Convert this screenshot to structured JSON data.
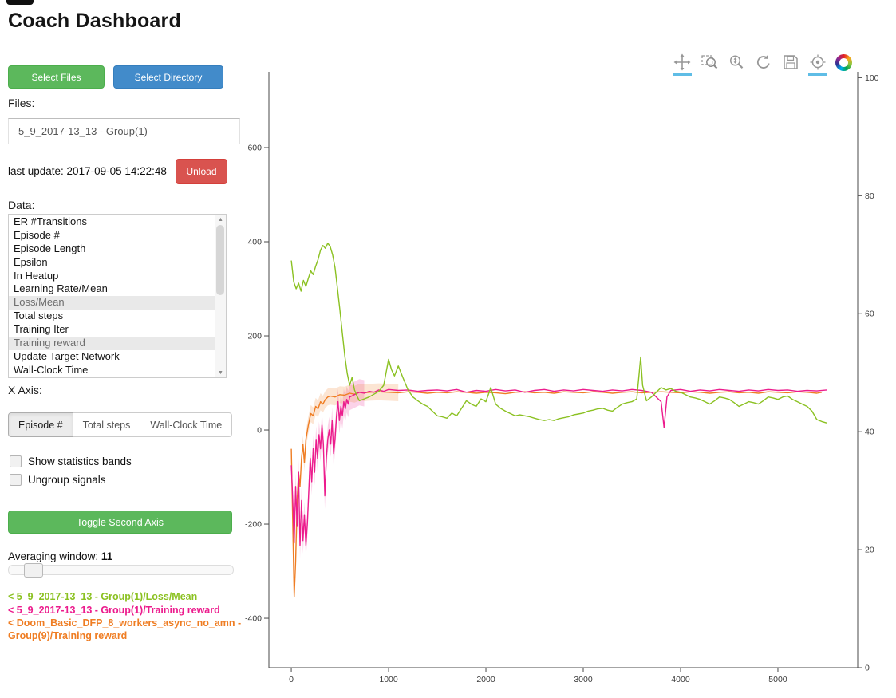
{
  "header": {
    "title": "Coach Dashboard"
  },
  "sidebar": {
    "buttons": {
      "select_files": "Select Files",
      "select_directory": "Select Directory",
      "unload": "Unload",
      "toggle_second_axis": "Toggle Second Axis"
    },
    "files_label": "Files:",
    "file_selected": "5_9_2017-13_13 - Group(1)",
    "last_update": "last update: 2017-09-05 14:22:48",
    "data_label": "Data:",
    "data_items": [
      {
        "label": "ER #Transitions",
        "selected": false
      },
      {
        "label": "Episode #",
        "selected": false
      },
      {
        "label": "Episode Length",
        "selected": false
      },
      {
        "label": "Epsilon",
        "selected": false
      },
      {
        "label": "In Heatup",
        "selected": false
      },
      {
        "label": "Learning Rate/Mean",
        "selected": false
      },
      {
        "label": "Loss/Mean",
        "selected": true
      },
      {
        "label": "Total steps",
        "selected": false
      },
      {
        "label": "Training Iter",
        "selected": false
      },
      {
        "label": "Training reward",
        "selected": true
      },
      {
        "label": "Update Target Network",
        "selected": false
      },
      {
        "label": "Wall-Clock Time",
        "selected": false
      }
    ],
    "x_axis_label": "X Axis:",
    "x_axis_options": [
      {
        "label": "Episode #",
        "active": true
      },
      {
        "label": "Total steps",
        "active": false
      },
      {
        "label": "Wall-Clock Time",
        "active": false
      }
    ],
    "checkboxes": [
      {
        "label": "Show statistics bands",
        "checked": false
      },
      {
        "label": "Ungroup signals",
        "checked": false
      }
    ],
    "averaging": {
      "label": "Averaging window:",
      "value": "11"
    },
    "legend": [
      {
        "text": "< 5_9_2017-13_13 - Group(1)/Loss/Mean",
        "color": "#8bc122"
      },
      {
        "text": "< 5_9_2017-13_13 - Group(1)/Training reward",
        "color": "#ec1c8d"
      },
      {
        "text": "< Doom_Basic_DFP_8_workers_async_no_amn - Group(9)/Training reward",
        "color": "#ef7d23"
      }
    ]
  },
  "toolbar": {
    "tools": [
      {
        "name": "pan",
        "active": true
      },
      {
        "name": "box-zoom",
        "active": false
      },
      {
        "name": "wheel-zoom",
        "active": false
      },
      {
        "name": "reset",
        "active": false
      },
      {
        "name": "save",
        "active": false
      },
      {
        "name": "hover",
        "active": true
      }
    ],
    "logo": "bokeh-logo"
  },
  "chart_data": {
    "type": "line",
    "title": "",
    "xlabel": "",
    "ylabel": "",
    "axes": {
      "xlim": [
        -230,
        5820
      ],
      "ylim_left": [
        -505,
        761
      ],
      "ylim_right": [
        0,
        101
      ],
      "x_ticks": [
        0,
        1000,
        2000,
        3000,
        4000,
        5000
      ],
      "y_left_ticks": [
        -400,
        -200,
        0,
        200,
        400,
        600
      ],
      "y_right_ticks": [
        0,
        20,
        40,
        60,
        80,
        100
      ],
      "grid": false,
      "legend_position": "external-left-sidebar"
    },
    "series": [
      {
        "name": "5_9_2017-13_13 - Group(1)/Loss/Mean",
        "color": "#8bc122",
        "axis": "left",
        "x": [
          0,
          25,
          50,
          75,
          100,
          125,
          150,
          175,
          200,
          225,
          250,
          275,
          300,
          325,
          350,
          375,
          400,
          425,
          450,
          475,
          500,
          525,
          550,
          575,
          600,
          625,
          650,
          675,
          700,
          750,
          800,
          850,
          900,
          950,
          1000,
          1030,
          1060,
          1100,
          1150,
          1200,
          1250,
          1300,
          1350,
          1400,
          1450,
          1500,
          1550,
          1600,
          1650,
          1700,
          1750,
          1800,
          1850,
          1900,
          1950,
          2000,
          2050,
          2100,
          2150,
          2200,
          2250,
          2300,
          2350,
          2400,
          2450,
          2500,
          2550,
          2600,
          2650,
          2700,
          2750,
          2800,
          2850,
          2900,
          2950,
          3000,
          3050,
          3100,
          3150,
          3200,
          3250,
          3300,
          3350,
          3400,
          3450,
          3500,
          3550,
          3590,
          3610,
          3650,
          3700,
          3750,
          3800,
          3850,
          3900,
          3950,
          4000,
          4050,
          4100,
          4150,
          4200,
          4250,
          4300,
          4350,
          4400,
          4450,
          4500,
          4550,
          4600,
          4650,
          4700,
          4750,
          4800,
          4850,
          4900,
          4950,
          5000,
          5050,
          5100,
          5150,
          5200,
          5250,
          5300,
          5350,
          5400,
          5450,
          5500
        ],
        "y": [
          360,
          315,
          300,
          312,
          295,
          318,
          305,
          322,
          338,
          330,
          348,
          362,
          382,
          392,
          386,
          397,
          390,
          372,
          345,
          300,
          255,
          205,
          158,
          120,
          95,
          112,
          85,
          72,
          62,
          66,
          70,
          76,
          82,
          95,
          150,
          128,
          115,
          136,
          110,
          85,
          70,
          62,
          55,
          50,
          40,
          30,
          28,
          25,
          36,
          30,
          46,
          62,
          55,
          50,
          66,
          60,
          90,
          55,
          46,
          40,
          35,
          30,
          32,
          30,
          28,
          25,
          22,
          20,
          22,
          20,
          24,
          26,
          28,
          32,
          34,
          36,
          40,
          42,
          45,
          46,
          42,
          40,
          48,
          55,
          58,
          60,
          66,
          155,
          95,
          62,
          70,
          80,
          90,
          85,
          88,
          82,
          80,
          75,
          70,
          68,
          65,
          60,
          55,
          62,
          70,
          68,
          65,
          58,
          50,
          55,
          60,
          58,
          55,
          62,
          70,
          68,
          65,
          70,
          72,
          65,
          60,
          55,
          50,
          40,
          22,
          18,
          15
        ]
      },
      {
        "name": "5_9_2017-13_13 - Group(1)/Training reward",
        "color": "#ec1c8d",
        "axis": "left",
        "band": {
          "start": 15,
          "end": 750,
          "halfwidth": 28
        },
        "x": [
          0,
          15,
          30,
          45,
          60,
          75,
          90,
          105,
          120,
          135,
          150,
          165,
          180,
          195,
          210,
          225,
          240,
          255,
          270,
          285,
          300,
          315,
          330,
          345,
          360,
          375,
          390,
          405,
          420,
          435,
          450,
          465,
          480,
          495,
          510,
          525,
          540,
          555,
          570,
          585,
          600,
          650,
          700,
          750,
          800,
          850,
          900,
          950,
          1000,
          1100,
          1200,
          1300,
          1400,
          1500,
          1600,
          1700,
          1800,
          1900,
          2000,
          2100,
          2200,
          2300,
          2400,
          2500,
          2600,
          2700,
          2800,
          2900,
          3000,
          3100,
          3200,
          3300,
          3400,
          3500,
          3600,
          3700,
          3800,
          3830,
          3860,
          3900,
          4000,
          4100,
          4200,
          4300,
          4400,
          4500,
          4600,
          4700,
          4800,
          4900,
          5000,
          5100,
          5200,
          5300,
          5400,
          5500
        ],
        "y": [
          -75,
          -150,
          -240,
          -120,
          -205,
          -90,
          -245,
          -150,
          -235,
          -180,
          -245,
          -200,
          -130,
          -60,
          -110,
          -40,
          -90,
          -20,
          -60,
          -10,
          -40,
          10,
          -30,
          -140,
          -60,
          -20,
          0,
          -30,
          20,
          -50,
          -20,
          30,
          60,
          20,
          50,
          30,
          60,
          45,
          65,
          55,
          70,
          75,
          80,
          78,
          82,
          80,
          85,
          82,
          86,
          84,
          85,
          82,
          84,
          85,
          83,
          86,
          80,
          84,
          82,
          86,
          83,
          85,
          80,
          84,
          86,
          82,
          85,
          83,
          86,
          84,
          82,
          85,
          83,
          86,
          84,
          80,
          60,
          5,
          70,
          84,
          86,
          82,
          85,
          83,
          86,
          84,
          82,
          85,
          83,
          86,
          84,
          85,
          82,
          84,
          83,
          85
        ]
      },
      {
        "name": "Doom_Basic_DFP_8_workers_async_no_amn - Group(9)/Training reward",
        "color": "#ef7d23",
        "axis": "left",
        "band": {
          "start": 100,
          "end": 1150,
          "halfwidth": 18
        },
        "x": [
          0,
          15,
          30,
          45,
          60,
          75,
          90,
          105,
          120,
          135,
          150,
          175,
          200,
          225,
          250,
          275,
          300,
          325,
          350,
          375,
          400,
          450,
          500,
          550,
          600,
          650,
          700,
          750,
          800,
          900,
          1000,
          1100,
          1200,
          1300,
          1400,
          1500,
          1600,
          1700,
          1800,
          1900,
          2000,
          2100,
          2200,
          2300,
          2400,
          2500,
          2600,
          2700,
          2800,
          2900,
          3000,
          3100,
          3200,
          3300,
          3400,
          3500,
          3600,
          3700,
          3800,
          3900,
          4000,
          4100,
          4200,
          4300,
          4400,
          4500,
          4600,
          4700,
          4800,
          4900,
          5000,
          5100,
          5200,
          5300,
          5400,
          5450
        ],
        "y": [
          -40,
          -200,
          -355,
          -280,
          -150,
          -90,
          -120,
          -60,
          -30,
          -70,
          -20,
          10,
          35,
          30,
          50,
          45,
          60,
          55,
          65,
          70,
          72,
          70,
          75,
          74,
          78,
          76,
          80,
          79,
          80,
          81,
          80,
          79,
          81,
          80,
          78,
          80,
          79,
          81,
          80,
          78,
          80,
          79,
          77,
          80,
          81,
          79,
          80,
          78,
          81,
          80,
          79,
          81,
          80,
          78,
          80,
          81,
          79,
          80,
          81,
          80,
          79,
          81,
          80,
          78,
          80,
          81,
          79,
          80,
          78,
          81,
          80,
          79,
          81,
          80,
          78,
          80
        ]
      }
    ]
  }
}
